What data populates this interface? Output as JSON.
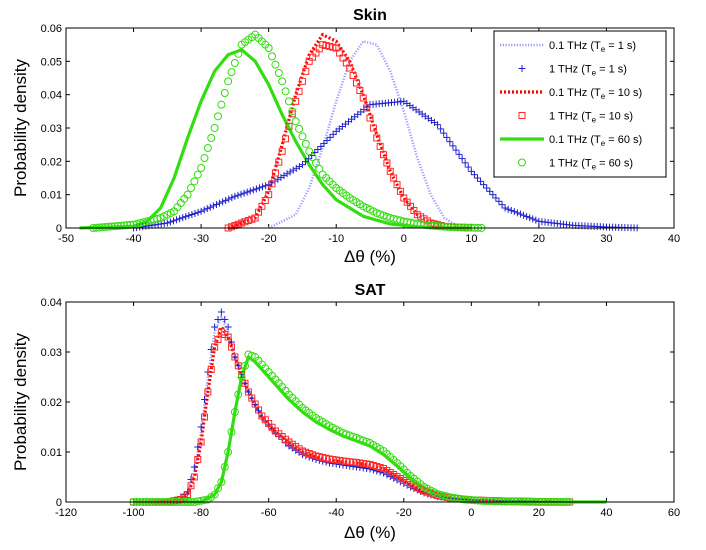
{
  "chart_data": [
    {
      "type": "line",
      "title": "Skin",
      "xlabel": "Δθ  (%)",
      "ylabel": "Probability density",
      "xlim": [
        -50,
        40
      ],
      "ylim": [
        0,
        0.06
      ],
      "xticks": [
        "-50",
        "-40",
        "-30",
        "-20",
        "-10",
        "0",
        "10",
        "20",
        "30",
        "40"
      ],
      "yticks": [
        "0",
        "0.01",
        "0.02",
        "0.03",
        "0.04",
        "0.05",
        "0.06"
      ],
      "legend_position": "top-right",
      "legend": [
        "0.1 THz (T_e = 1 s)",
        "1 THz (T_e = 1 s)",
        "0.1 THz (T_e = 10 s)",
        "1 THz (T_e = 10 s)",
        "0.1 THz (T_e = 60 s)",
        "1 THz (T_e = 60 s)"
      ],
      "series": [
        {
          "name": "0.1 THz (T_e = 1 s)",
          "color": "#9b9bff",
          "style": "dotted-line",
          "x": [
            -20,
            -16,
            -14,
            -12,
            -10,
            -8,
            -6,
            -4,
            -2,
            0,
            2,
            4,
            6,
            8
          ],
          "y": [
            0,
            0.004,
            0.012,
            0.024,
            0.038,
            0.05,
            0.056,
            0.055,
            0.047,
            0.035,
            0.021,
            0.01,
            0.003,
            0.0005
          ]
        },
        {
          "name": "1 THz (T_e = 1 s)",
          "color": "#2222cc",
          "style": "plus-markers",
          "x": [
            -40,
            -35,
            -30,
            -25,
            -20,
            -15,
            -10,
            -5,
            0,
            5,
            10,
            15,
            20,
            25,
            30,
            35
          ],
          "y": [
            0,
            0.0015,
            0.005,
            0.0095,
            0.013,
            0.019,
            0.029,
            0.037,
            0.038,
            0.031,
            0.017,
            0.006,
            0.002,
            0.0008,
            0.0003,
            0
          ]
        },
        {
          "name": "0.1 THz (T_e = 10 s)",
          "color": "#ff0000",
          "style": "dotted-thick-line",
          "x": [
            -26,
            -22,
            -20,
            -18,
            -16,
            -14,
            -12,
            -10,
            -8,
            -6,
            -4,
            -2,
            0,
            2,
            4,
            6
          ],
          "y": [
            0,
            0.003,
            0.011,
            0.025,
            0.04,
            0.052,
            0.058,
            0.056,
            0.05,
            0.04,
            0.028,
            0.017,
            0.009,
            0.004,
            0.0015,
            0
          ]
        },
        {
          "name": "1 THz (T_e = 10 s)",
          "color": "#ff2a2a",
          "style": "square-markers",
          "x": [
            -26,
            -22,
            -20,
            -18,
            -16,
            -14,
            -12,
            -10,
            -8,
            -6,
            -4,
            -2,
            0,
            2,
            4,
            6,
            8,
            10
          ],
          "y": [
            0,
            0.003,
            0.01,
            0.023,
            0.038,
            0.05,
            0.055,
            0.054,
            0.048,
            0.039,
            0.027,
            0.017,
            0.009,
            0.004,
            0.0015,
            0.0005,
            0.0002,
            0
          ]
        },
        {
          "name": "0.1 THz (T_e = 60 s)",
          "color": "#33dd11",
          "style": "solid-line",
          "x": [
            -48,
            -40,
            -38,
            -36,
            -34,
            -32,
            -30,
            -28,
            -26,
            -24,
            -22,
            -20,
            -18,
            -16,
            -14,
            -12,
            -10,
            -6,
            -2,
            2,
            6,
            10
          ],
          "y": [
            0,
            0.0005,
            0.002,
            0.006,
            0.015,
            0.027,
            0.038,
            0.047,
            0.052,
            0.0535,
            0.05,
            0.043,
            0.034,
            0.026,
            0.019,
            0.013,
            0.0085,
            0.0035,
            0.0012,
            0.0004,
            0.0001,
            0
          ]
        },
        {
          "name": "1 THz (T_e = 60 s)",
          "color": "#33dd11",
          "style": "circle-markers",
          "x": [
            -46,
            -40,
            -36,
            -34,
            -32,
            -30,
            -28,
            -26,
            -24,
            -22,
            -20,
            -18,
            -16,
            -14,
            -12,
            -10,
            -8,
            -6,
            -4,
            -2,
            0,
            2,
            4,
            6,
            8,
            10,
            12
          ],
          "y": [
            0,
            0.001,
            0.003,
            0.005,
            0.01,
            0.018,
            0.03,
            0.044,
            0.055,
            0.058,
            0.054,
            0.044,
            0.032,
            0.023,
            0.016,
            0.012,
            0.009,
            0.0065,
            0.0045,
            0.003,
            0.002,
            0.0012,
            0.0007,
            0.0004,
            0.0002,
            0.0001,
            0
          ]
        }
      ]
    },
    {
      "type": "line",
      "title": "SAT",
      "xlabel": "Δθ  (%)",
      "ylabel": "Probability density",
      "xlim": [
        -120,
        60
      ],
      "ylim": [
        0,
        0.04
      ],
      "xticks": [
        "-120",
        "-100",
        "-80",
        "-60",
        "-40",
        "-20",
        "0",
        "20",
        "40",
        "60"
      ],
      "yticks": [
        "0",
        "0.01",
        "0.02",
        "0.03",
        "0.04"
      ],
      "series": [
        {
          "name": "0.1 THz (T_e = 1 s)",
          "color": "#9b9bff",
          "style": "dotted-line",
          "x": [
            -100,
            -88,
            -84,
            -82,
            -80,
            -78,
            -76,
            -74,
            -72,
            -70,
            -66,
            -62,
            -58,
            -54,
            -50,
            -46,
            -42,
            -38,
            -34,
            -30,
            -26,
            -22,
            -18,
            -14,
            -10,
            -6,
            0,
            10,
            20,
            30,
            40
          ],
          "y": [
            0,
            0,
            0.002,
            0.006,
            0.014,
            0.025,
            0.034,
            0.037,
            0.034,
            0.029,
            0.022,
            0.017,
            0.014,
            0.0115,
            0.0098,
            0.0088,
            0.008,
            0.0075,
            0.0072,
            0.0068,
            0.006,
            0.0045,
            0.003,
            0.0018,
            0.0011,
            0.0007,
            0.0004,
            0.0002,
            0.0001,
            0,
            0
          ]
        },
        {
          "name": "1 THz (T_e = 1 s)",
          "color": "#2222cc",
          "style": "plus-markers",
          "x": [
            -100,
            -88,
            -84,
            -82,
            -80,
            -78,
            -76,
            -74,
            -72,
            -70,
            -66,
            -62,
            -58,
            -54,
            -50,
            -46,
            -42,
            -38,
            -34,
            -30,
            -26,
            -22,
            -18,
            -14,
            -10,
            -6,
            0,
            10,
            20,
            30
          ],
          "y": [
            0,
            0,
            0.002,
            0.007,
            0.015,
            0.026,
            0.035,
            0.038,
            0.035,
            0.029,
            0.022,
            0.017,
            0.0138,
            0.0112,
            0.0095,
            0.0085,
            0.0078,
            0.0074,
            0.007,
            0.0066,
            0.0058,
            0.0044,
            0.003,
            0.0018,
            0.0011,
            0.0007,
            0.0004,
            0.0002,
            0.0001,
            0
          ]
        },
        {
          "name": "0.1 THz (T_e = 10 s)",
          "color": "#ff0000",
          "style": "dotted-thick-line",
          "x": [
            -100,
            -88,
            -84,
            -82,
            -80,
            -78,
            -76,
            -74,
            -72,
            -70,
            -66,
            -62,
            -58,
            -54,
            -50,
            -46,
            -42,
            -38,
            -34,
            -30,
            -26,
            -22,
            -18,
            -14,
            -10,
            -6,
            0,
            10,
            20,
            30
          ],
          "y": [
            0,
            0,
            0.0015,
            0.005,
            0.012,
            0.022,
            0.031,
            0.035,
            0.033,
            0.029,
            0.022,
            0.017,
            0.014,
            0.0118,
            0.01,
            0.009,
            0.0084,
            0.008,
            0.0078,
            0.0074,
            0.0066,
            0.005,
            0.0034,
            0.0021,
            0.0013,
            0.0008,
            0.0004,
            0.0002,
            0.0001,
            0
          ]
        },
        {
          "name": "1 THz (T_e = 10 s)",
          "color": "#ff2a2a",
          "style": "square-markers",
          "x": [
            -100,
            -90,
            -86,
            -84,
            -82,
            -80,
            -78,
            -76,
            -74,
            -72,
            -70,
            -66,
            -62,
            -58,
            -54,
            -50,
            -46,
            -42,
            -38,
            -34,
            -30,
            -26,
            -22,
            -18,
            -14,
            -10,
            -6,
            0,
            10,
            20,
            30
          ],
          "y": [
            0,
            0,
            0.0005,
            0.0015,
            0.005,
            0.012,
            0.022,
            0.031,
            0.034,
            0.033,
            0.029,
            0.022,
            0.0172,
            0.0142,
            0.012,
            0.0102,
            0.0092,
            0.0086,
            0.0082,
            0.0079,
            0.0075,
            0.0067,
            0.0051,
            0.0035,
            0.0022,
            0.0013,
            0.0008,
            0.0004,
            0.0002,
            0.0001,
            0
          ]
        },
        {
          "name": "0.1 THz (T_e = 60 s)",
          "color": "#33dd11",
          "style": "solid-line",
          "x": [
            -100,
            -80,
            -76,
            -74,
            -72,
            -70,
            -68,
            -66,
            -64,
            -62,
            -58,
            -54,
            -50,
            -46,
            -42,
            -38,
            -34,
            -30,
            -26,
            -22,
            -18,
            -14,
            -10,
            -6,
            -2,
            4,
            10,
            20,
            30,
            40
          ],
          "y": [
            0,
            0,
            0.0015,
            0.004,
            0.01,
            0.018,
            0.025,
            0.029,
            0.028,
            0.0265,
            0.0235,
            0.0205,
            0.018,
            0.016,
            0.0145,
            0.0132,
            0.0122,
            0.0112,
            0.0095,
            0.0072,
            0.0048,
            0.0028,
            0.0015,
            0.0008,
            0.0004,
            0.0002,
            0.0001,
            0,
            0,
            0
          ]
        },
        {
          "name": "1 THz (T_e = 60 s)",
          "color": "#33dd11",
          "style": "circle-markers",
          "x": [
            -100,
            -82,
            -78,
            -76,
            -74,
            -72,
            -70,
            -68,
            -66,
            -64,
            -62,
            -58,
            -54,
            -50,
            -46,
            -42,
            -38,
            -34,
            -30,
            -26,
            -22,
            -18,
            -14,
            -10,
            -6,
            -2,
            4,
            10,
            20,
            30
          ],
          "y": [
            0,
            0,
            0.0005,
            0.0015,
            0.004,
            0.01,
            0.018,
            0.025,
            0.0295,
            0.029,
            0.0275,
            0.0245,
            0.0215,
            0.0188,
            0.0168,
            0.0152,
            0.0138,
            0.0128,
            0.0118,
            0.0102,
            0.0078,
            0.0052,
            0.003,
            0.0016,
            0.0009,
            0.0005,
            0.0002,
            0.0001,
            0,
            0
          ]
        }
      ]
    }
  ]
}
